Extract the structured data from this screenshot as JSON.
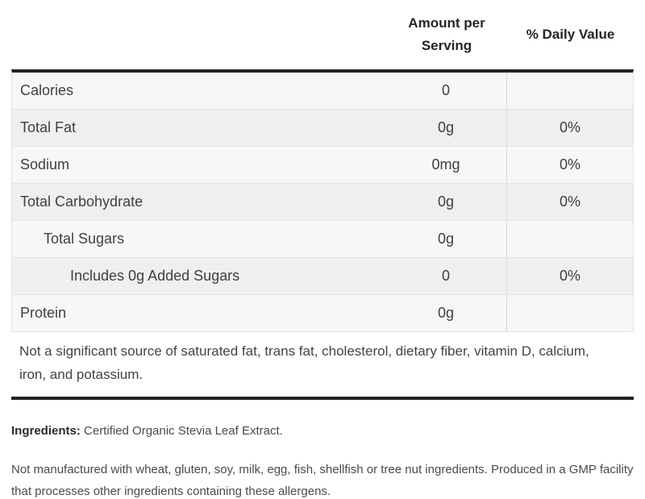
{
  "colors": {
    "thick_border": "#222222",
    "row_border": "#e3e3e3",
    "column_divider": "#d9d9d9",
    "row_odd_bg": "#f7f7f7",
    "row_even_bg": "#efefef",
    "header_text": "#242424",
    "body_text": "#434343"
  },
  "nutrition_table": {
    "header": {
      "amount_line1": "Amount per",
      "amount_line2": "Serving",
      "daily_value": "% Daily Value"
    },
    "rows": [
      {
        "label": "Calories",
        "amount": "0",
        "daily_value": "",
        "indent": 0
      },
      {
        "label": "Total Fat",
        "amount": "0g",
        "daily_value": "0%",
        "indent": 0
      },
      {
        "label": "Sodium",
        "amount": "0mg",
        "daily_value": "0%",
        "indent": 0
      },
      {
        "label": "Total Carbohydrate",
        "amount": "0g",
        "daily_value": "0%",
        "indent": 0
      },
      {
        "label": "Total Sugars",
        "amount": "0g",
        "daily_value": "",
        "indent": 1
      },
      {
        "label": "Includes 0g Added Sugars",
        "amount": "0",
        "daily_value": "0%",
        "indent": 2
      },
      {
        "label": "Protein",
        "amount": "0g",
        "daily_value": "",
        "indent": 0
      }
    ],
    "footnote": "Not a significant source of saturated fat, trans fat, cholesterol, dietary fiber, vitamin D, calcium, iron, and potassium."
  },
  "ingredients": {
    "label": "Ingredients:",
    "value": "Certified Organic Stevia Leaf Extract."
  },
  "allergen_note": "Not manufactured with wheat, gluten, soy, milk, egg, fish, shellfish or tree nut ingredients. Produced in a GMP facility that processes other ingredients containing these allergens."
}
